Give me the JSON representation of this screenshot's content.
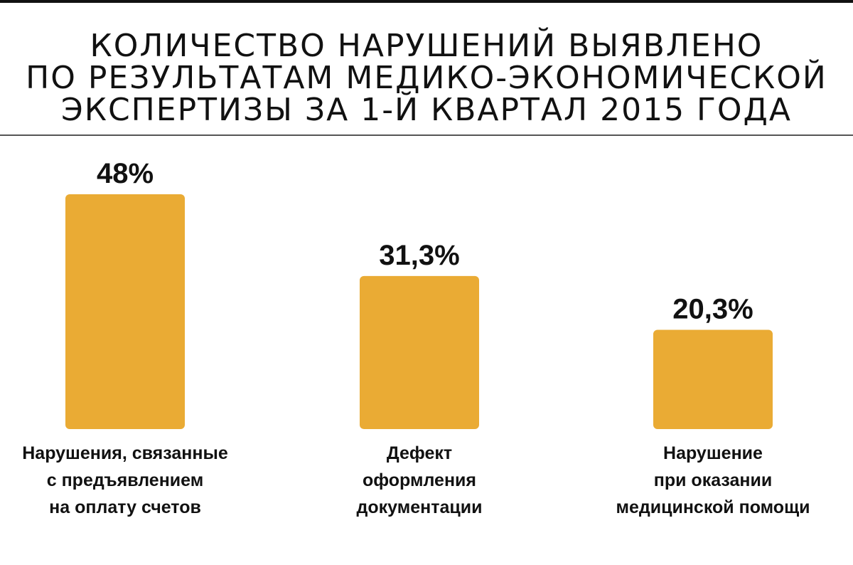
{
  "title": {
    "lines": [
      "КОЛИЧЕСТВО НАРУШЕНИЙ ВЫЯВЛЕНО",
      "ПО РЕЗУЛЬТАТАМ МЕДИКО-ЭКОНОМИЧЕСКОЙ",
      "ЭКСПЕРТИЗЫ ЗА 1-Й КВАРТАЛ 2015 ГОДА"
    ]
  },
  "colors": {
    "bar": "#EAAB34",
    "text": "#111111"
  },
  "chart_data": {
    "type": "bar",
    "title": "КОЛИЧЕСТВО НАРУШЕНИЙ ВЫЯВЛЕНО ПО РЕЗУЛЬТАТАМ МЕДИКО-ЭКОНОМИЧЕСКОЙ ЭКСПЕРТИЗЫ ЗА 1-Й КВАРТАЛ 2015 ГОДА",
    "categories": [
      "Нарушения, связанные с предъявлением на оплату счетов",
      "Дефект оформления документации",
      "Нарушение при оказании медицинской помощи"
    ],
    "category_lines": [
      [
        "Нарушения, связанные",
        "с предъявлением",
        "на оплату счетов"
      ],
      [
        "Дефект",
        "оформления",
        "документации"
      ],
      [
        "Нарушение",
        "при оказании",
        "медицинской помощи"
      ]
    ],
    "values": [
      48,
      31.3,
      20.3
    ],
    "value_labels": [
      "48%",
      "31,3%",
      "20,3%"
    ],
    "unit": "%",
    "xlabel": "",
    "ylabel": "",
    "grid": false
  }
}
